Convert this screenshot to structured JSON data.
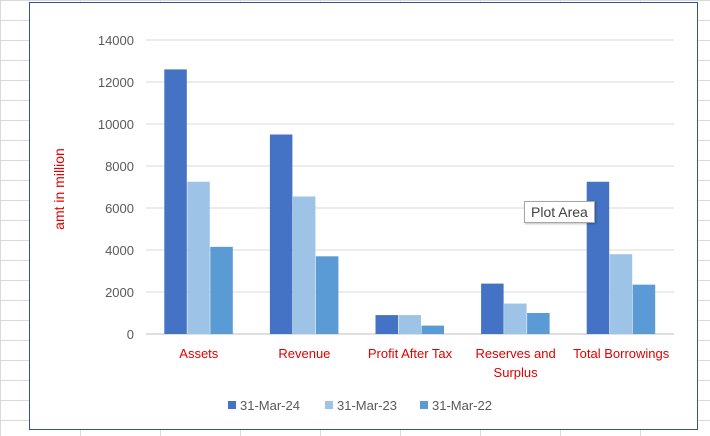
{
  "chart_data": {
    "type": "bar",
    "categories": [
      "Assets",
      "Revenue",
      "Profit After Tax",
      "Reserves and Surplus",
      "Total Borrowings"
    ],
    "category_lines": [
      [
        "Assets"
      ],
      [
        "Revenue"
      ],
      [
        "Profit After Tax"
      ],
      [
        "Reserves and",
        "Surplus"
      ],
      [
        "Total Borrowings"
      ]
    ],
    "series": [
      {
        "name": "31-Mar-24",
        "color": "#4472c4",
        "values": [
          12600,
          9500,
          900,
          2400,
          7250
        ]
      },
      {
        "name": "31-Mar-23",
        "color": "#9dc3e6",
        "values": [
          7250,
          6550,
          900,
          1450,
          3800
        ]
      },
      {
        "name": "31-Mar-22",
        "color": "#5b9bd5",
        "values": [
          4150,
          3700,
          400,
          1000,
          2350
        ]
      }
    ],
    "ylabel": "amt in million",
    "ylim": [
      0,
      14000
    ],
    "yticks": [
      0,
      2000,
      4000,
      6000,
      8000,
      10000,
      12000,
      14000
    ],
    "grid": true,
    "legend_position": "bottom",
    "label_color": "#e00000"
  },
  "tooltip": {
    "text": "Plot Area"
  }
}
